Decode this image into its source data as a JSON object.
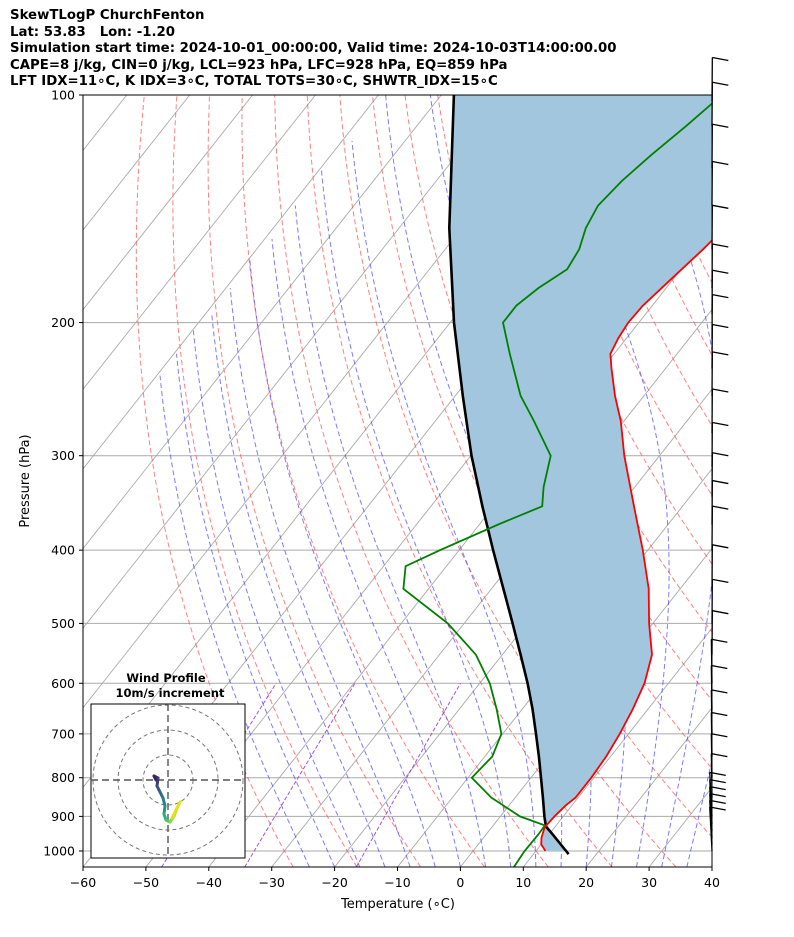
{
  "header": {
    "line1": "SkewTLogP ChurchFenton",
    "line2": "Lat: 53.83   Lon: -1.20",
    "line3": "Simulation start time: 2024-10-01_00:00:00, Valid time: 2024-10-03T14:00:00.00",
    "line4": "CAPE=8 j/kg, CIN=0 j/kg, LCL=923 hPa, LFC=928 hPa, EQ=859 hPa",
    "line5": "LFT IDX=11∘C, K IDX=3∘C, TOTAL TOTS=30∘C, SHWTR_IDX=15∘C"
  },
  "chart_data": {
    "type": "skewt-logp",
    "xlabel": "Temperature (∘C)",
    "ylabel": "Pressure (hPa)",
    "xlim": [
      -60,
      40
    ],
    "ylim": [
      1050,
      100
    ],
    "x_ticks": [
      "−60",
      "−50",
      "−40",
      "−30",
      "−20",
      "−10",
      "0",
      "10",
      "20",
      "30",
      "40"
    ],
    "y_ticks": [
      "100",
      "200",
      "300",
      "400",
      "500",
      "600",
      "700",
      "800",
      "900",
      "1000"
    ],
    "grid": true,
    "colors": {
      "temperature": "#ff0000",
      "dewpoint": "#008000",
      "parcel": "#000000",
      "cape_fill": "#a3c6df",
      "dry_adiabats": "#ff5555",
      "moist_adiabats": "#4444ff",
      "mixing_ratio": "#9933cc",
      "isotherms": "#aaaaaa"
    },
    "temperature_profile": [
      {
        "p": 1000,
        "t": 11.5
      },
      {
        "p": 980,
        "t": 10.0
      },
      {
        "p": 960,
        "t": 9.2
      },
      {
        "p": 930,
        "t": 8.4
      },
      {
        "p": 900,
        "t": 8.6
      },
      {
        "p": 870,
        "t": 9.0
      },
      {
        "p": 850,
        "t": 9.6
      },
      {
        "p": 800,
        "t": 9.6
      },
      {
        "p": 750,
        "t": 9.3
      },
      {
        "p": 700,
        "t": 8.6
      },
      {
        "p": 650,
        "t": 7.6
      },
      {
        "p": 600,
        "t": 6.2
      },
      {
        "p": 550,
        "t": 3.8
      },
      {
        "p": 500,
        "t": -0.6
      },
      {
        "p": 450,
        "t": -5.0
      },
      {
        "p": 400,
        "t": -10.8
      },
      {
        "p": 350,
        "t": -17.7
      },
      {
        "p": 300,
        "t": -25.6
      },
      {
        "p": 270,
        "t": -30.5
      },
      {
        "p": 250,
        "t": -34.6
      },
      {
        "p": 230,
        "t": -38.6
      },
      {
        "p": 220,
        "t": -40.6
      },
      {
        "p": 210,
        "t": -41.3
      },
      {
        "p": 200,
        "t": -41.7
      },
      {
        "p": 190,
        "t": -41.5
      },
      {
        "p": 175,
        "t": -40.3
      },
      {
        "p": 160,
        "t": -39.0
      },
      {
        "p": 150,
        "t": -38.3
      },
      {
        "p": 140,
        "t": -36.9
      },
      {
        "p": 130,
        "t": -35.6
      },
      {
        "p": 120,
        "t": -34.9
      },
      {
        "p": 115,
        "t": -33.8
      },
      {
        "p": 110,
        "t": -32.5
      },
      {
        "p": 105,
        "t": -31.3
      },
      {
        "p": 100,
        "t": -30.2
      }
    ],
    "dewpoint_profile": [
      {
        "p": 1050,
        "td": 8.5
      },
      {
        "p": 1000,
        "td": 8.2
      },
      {
        "p": 950,
        "td": 8.3
      },
      {
        "p": 925,
        "td": 8.2
      },
      {
        "p": 900,
        "td": 3.1
      },
      {
        "p": 850,
        "td": -3.8
      },
      {
        "p": 800,
        "td": -9.4
      },
      {
        "p": 750,
        "td": -8.8
      },
      {
        "p": 700,
        "td": -10.2
      },
      {
        "p": 650,
        "td": -14.0
      },
      {
        "p": 600,
        "td": -18.4
      },
      {
        "p": 550,
        "td": -24.2
      },
      {
        "p": 500,
        "td": -32.6
      },
      {
        "p": 450,
        "td": -44.0
      },
      {
        "p": 420,
        "td": -46.5
      },
      {
        "p": 400,
        "td": -43.0
      },
      {
        "p": 370,
        "td": -37.0
      },
      {
        "p": 350,
        "td": -32.3
      },
      {
        "p": 330,
        "td": -34.5
      },
      {
        "p": 300,
        "td": -37.3
      },
      {
        "p": 270,
        "td": -44.3
      },
      {
        "p": 250,
        "td": -49.6
      },
      {
        "p": 220,
        "td": -56.6
      },
      {
        "p": 200,
        "td": -61.6
      },
      {
        "p": 190,
        "td": -61.6
      },
      {
        "p": 180,
        "td": -60.3
      },
      {
        "p": 170,
        "td": -58.1
      },
      {
        "p": 160,
        "td": -58.7
      },
      {
        "p": 150,
        "td": -60.3
      },
      {
        "p": 140,
        "td": -61.2
      },
      {
        "p": 130,
        "td": -60.5
      },
      {
        "p": 120,
        "td": -59.1
      },
      {
        "p": 110,
        "td": -57.2
      },
      {
        "p": 100,
        "td": -55.4
      }
    ],
    "parcel_profile": [
      {
        "p": 1010,
        "t": 15.6
      },
      {
        "p": 1000,
        "t": 14.8
      },
      {
        "p": 950,
        "t": 10.5
      },
      {
        "p": 928,
        "t": 8.5
      },
      {
        "p": 900,
        "t": 7.0
      },
      {
        "p": 850,
        "t": 4.4
      },
      {
        "p": 800,
        "t": 1.6
      },
      {
        "p": 750,
        "t": -1.4
      },
      {
        "p": 700,
        "t": -4.7
      },
      {
        "p": 650,
        "t": -8.3
      },
      {
        "p": 600,
        "t": -12.4
      },
      {
        "p": 550,
        "t": -17.1
      },
      {
        "p": 500,
        "t": -22.3
      },
      {
        "p": 450,
        "t": -28.1
      },
      {
        "p": 400,
        "t": -34.6
      },
      {
        "p": 350,
        "t": -41.8
      },
      {
        "p": 300,
        "t": -49.9
      },
      {
        "p": 250,
        "t": -58.8
      },
      {
        "p": 200,
        "t": -69.4
      },
      {
        "p": 150,
        "t": -82.0
      },
      {
        "p": 100,
        "t": -98.0
      }
    ],
    "hodograph": {
      "title": "Wind Profile",
      "subtitle": "10m/s increment"
    }
  }
}
